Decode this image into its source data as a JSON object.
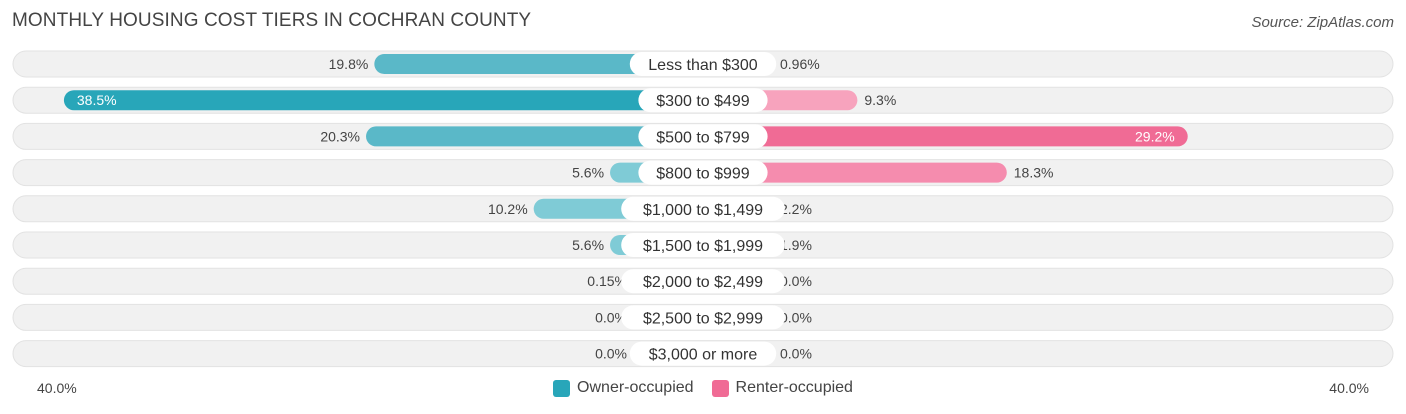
{
  "title": "MONTHLY HOUSING COST TIERS IN COCHRAN COUNTY",
  "source": "Source: ZipAtlas.com",
  "colors": {
    "owner": "#5ab8c8",
    "owner_strong": "#28a6b9",
    "renter": "#f7a3bd",
    "renter_strong": "#f06b95",
    "row_bg": "#f1f1f1"
  },
  "chart_data": {
    "type": "bar",
    "orientation": "horizontal-diverging",
    "categories": [
      "Less than $300",
      "$300 to $499",
      "$500 to $799",
      "$800 to $999",
      "$1,000 to $1,499",
      "$1,500 to $1,999",
      "$2,000 to $2,499",
      "$2,500 to $2,999",
      "$3,000 or more"
    ],
    "series": [
      {
        "name": "Owner-occupied",
        "values": [
          19.8,
          38.5,
          20.3,
          5.6,
          10.2,
          5.6,
          0.15,
          0.0,
          0.0
        ],
        "labels": [
          "19.8%",
          "38.5%",
          "20.3%",
          "5.6%",
          "10.2%",
          "5.6%",
          "0.15%",
          "0.0%",
          "0.0%"
        ]
      },
      {
        "name": "Renter-occupied",
        "values": [
          0.96,
          9.3,
          29.2,
          18.3,
          2.2,
          1.9,
          0.0,
          0.0,
          0.0
        ],
        "labels": [
          "0.96%",
          "9.3%",
          "29.2%",
          "18.3%",
          "2.2%",
          "1.9%",
          "0.0%",
          "0.0%",
          "0.0%"
        ]
      }
    ],
    "xlim": [
      -40,
      40
    ],
    "axis_labels": {
      "left": "40.0%",
      "right": "40.0%"
    },
    "legend_position": "bottom-center"
  }
}
